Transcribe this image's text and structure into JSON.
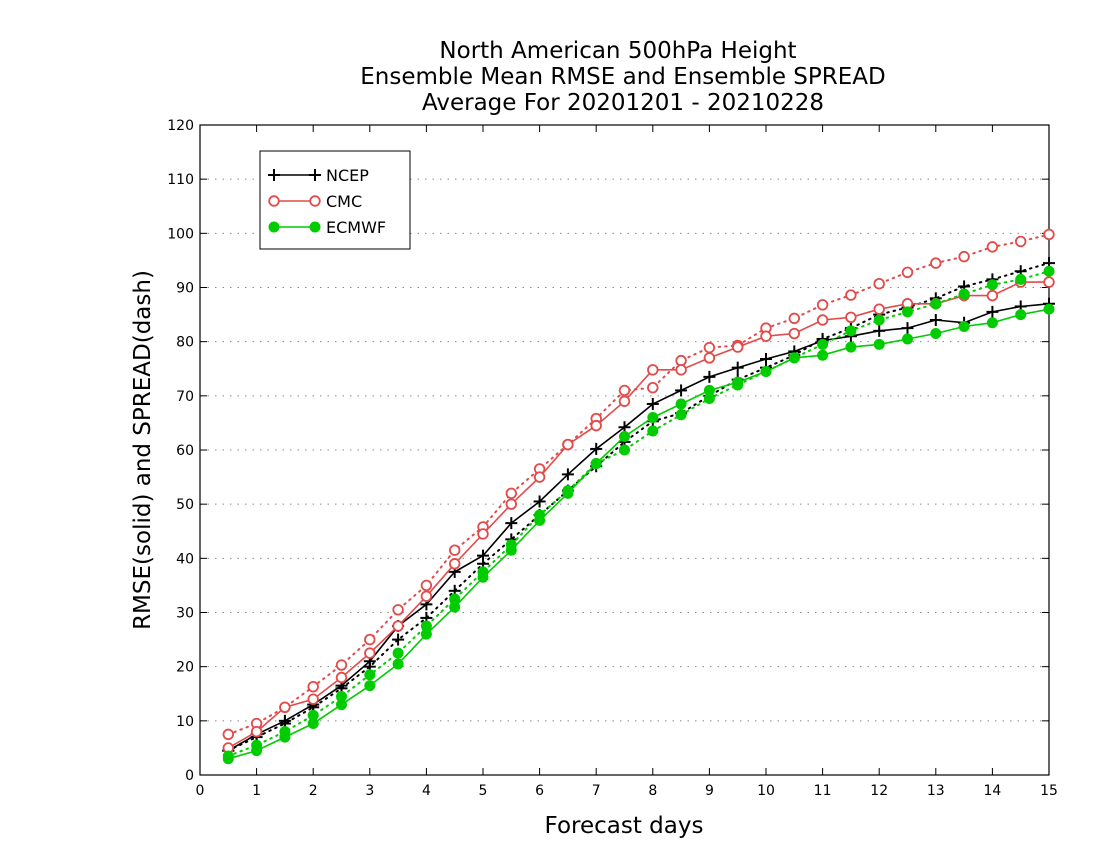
{
  "chart_data": {
    "type": "line",
    "title_lines": [
      "North American 500hPa Height",
      "Ensemble Mean RMSE and Ensemble SPREAD",
      "Average For 20201201 - 20210228"
    ],
    "xlabel": "Forecast days",
    "ylabel": "RMSE(solid) and SPREAD(dash)",
    "xlim": [
      0,
      15
    ],
    "ylim": [
      0,
      120
    ],
    "xticks": [
      0,
      1,
      2,
      3,
      4,
      5,
      6,
      7,
      8,
      9,
      10,
      11,
      12,
      13,
      14,
      15
    ],
    "yticks": [
      0,
      10,
      20,
      30,
      40,
      50,
      60,
      70,
      80,
      90,
      100,
      110,
      120
    ],
    "grid": true,
    "legend_position": "top-left",
    "x": [
      0.5,
      1,
      1.5,
      2,
      2.5,
      3,
      3.5,
      4,
      4.5,
      5,
      5.5,
      6,
      6.5,
      7,
      7.5,
      8,
      8.5,
      9,
      9.5,
      10,
      10.5,
      11,
      11.5,
      12,
      12.5,
      13,
      13.5,
      14,
      14.5,
      15
    ],
    "series": [
      {
        "name": "NCEP",
        "color": "#000000",
        "marker": "plus",
        "rmse": [
          4.5,
          7.5,
          10,
          13,
          16.5,
          21,
          27.5,
          31.5,
          37.5,
          40.5,
          46.5,
          50.5,
          55.5,
          60.2,
          64.2,
          68.5,
          71,
          73.5,
          75.2,
          76.8,
          78.2,
          80.2,
          81,
          82,
          82.5,
          84,
          83.5,
          85.5,
          86.5,
          87
        ],
        "spread": [
          4.5,
          7,
          9.5,
          12.5,
          16,
          20,
          25,
          29,
          34,
          39,
          43.5,
          48,
          52.5,
          57,
          61.5,
          65.3,
          66.8,
          70,
          73,
          75.2,
          77.5,
          80.5,
          82.5,
          85,
          86.3,
          88,
          90.2,
          91.5,
          93,
          94.5
        ]
      },
      {
        "name": "CMC",
        "color": "#e34a4a",
        "marker": "open-circle",
        "rmse": [
          5,
          8,
          12.5,
          14,
          18,
          22.5,
          27.5,
          33,
          39,
          44.5,
          50,
          55,
          61,
          64.5,
          69,
          74.8,
          74.8,
          77,
          79,
          81,
          81.5,
          84,
          84.5,
          86,
          87,
          87,
          88.5,
          88.5,
          91,
          91
        ],
        "spread": [
          7.5,
          9.5,
          12.5,
          16.3,
          20.3,
          25,
          30.5,
          35,
          41.5,
          45.8,
          52,
          56.5,
          61,
          65.8,
          71,
          71.5,
          76.5,
          78.9,
          79.3,
          82.5,
          84.3,
          86.8,
          88.6,
          90.7,
          92.8,
          94.5,
          95.7,
          97.5,
          98.5,
          99.8
        ]
      },
      {
        "name": "ECMWF",
        "color": "#00cc00",
        "marker": "filled-circle",
        "rmse": [
          3,
          4.5,
          7,
          9.5,
          13,
          16.5,
          20.5,
          26,
          31,
          36.5,
          41.5,
          47,
          52,
          57.5,
          62.5,
          66,
          68.5,
          71,
          72.5,
          74.5,
          77,
          77.5,
          79,
          79.5,
          80.5,
          81.5,
          82.8,
          83.5,
          85,
          86
        ],
        "spread": [
          3.5,
          5.5,
          8,
          11,
          14.5,
          18.5,
          22.5,
          27.5,
          32.5,
          37.5,
          42.5,
          48,
          52.5,
          57.5,
          60,
          63.5,
          66.5,
          69.5,
          72,
          74.5,
          77,
          79.5,
          82,
          84,
          85.5,
          87,
          88.8,
          90.5,
          91.5,
          93
        ]
      }
    ]
  }
}
